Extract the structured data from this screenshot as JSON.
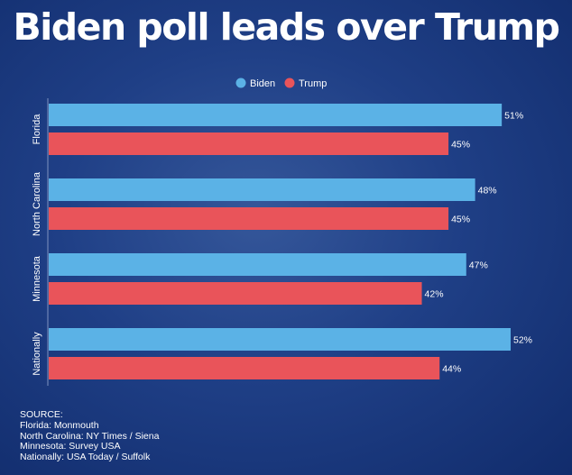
{
  "chart_data": {
    "type": "bar",
    "orientation": "horizontal",
    "title": "Biden poll leads over Trump",
    "categories": [
      "Florida",
      "North Carolina",
      "Minnesota",
      "Nationally"
    ],
    "series": [
      {
        "name": "Biden",
        "color": "#5bb2e6",
        "values": [
          51,
          48,
          47,
          52
        ],
        "labels": [
          "51%",
          "48%",
          "47%",
          "52%"
        ]
      },
      {
        "name": "Trump",
        "color": "#e9545a",
        "values": [
          45,
          45,
          42,
          44
        ],
        "labels": [
          "45%",
          "45%",
          "42%",
          "44%"
        ]
      }
    ],
    "legend": [
      "Biden",
      "Trump"
    ],
    "legend_position": "top-center",
    "xlim": [
      0,
      52
    ],
    "grid": false,
    "xlabel": "",
    "ylabel": ""
  },
  "source": {
    "heading": "SOURCE:",
    "lines": [
      "Florida: Monmouth",
      "North Carolina: NY Times / Siena",
      "Minnesota: Survey USA",
      "Nationally:  USA Today / Suffolk"
    ]
  }
}
